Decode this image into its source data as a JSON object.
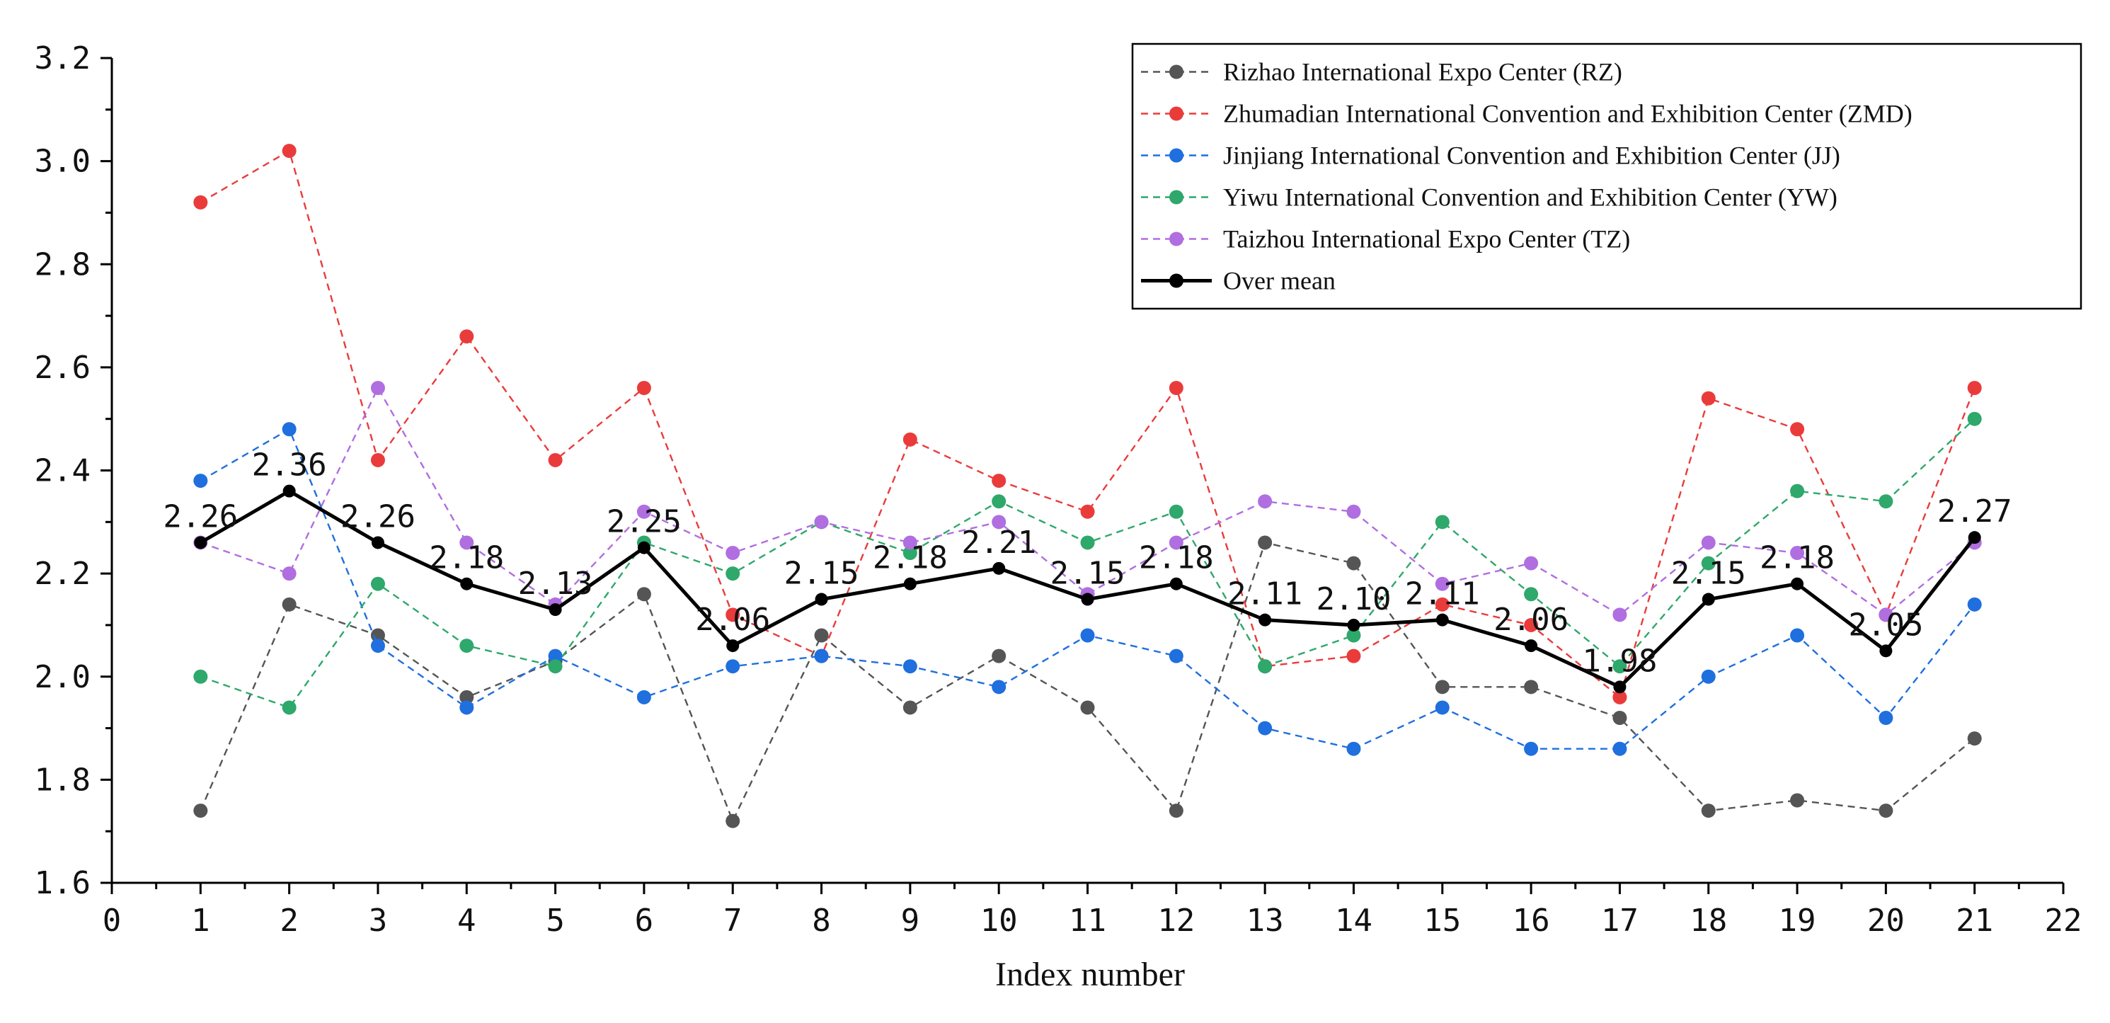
{
  "chart_data": {
    "type": "line",
    "title": "",
    "xlabel": "Index number",
    "ylabel": "",
    "xlim": [
      0,
      22
    ],
    "ylim": [
      1.6,
      3.2
    ],
    "x_ticks": [
      "0",
      "1",
      "2",
      "3",
      "4",
      "5",
      "6",
      "7",
      "8",
      "9",
      "10",
      "11",
      "12",
      "13",
      "14",
      "15",
      "16",
      "17",
      "18",
      "19",
      "20",
      "21",
      "22"
    ],
    "y_ticks": [
      "1.6",
      "1.8",
      "2.0",
      "2.2",
      "2.4",
      "2.6",
      "2.8",
      "3.0",
      "3.2"
    ],
    "y_tick_values": [
      1.6,
      1.8,
      2.0,
      2.2,
      2.4,
      2.6,
      2.8,
      3.0,
      3.2
    ],
    "grid": false,
    "legend_position": "top-right",
    "x": [
      1,
      2,
      3,
      4,
      5,
      6,
      7,
      8,
      9,
      10,
      11,
      12,
      13,
      14,
      15,
      16,
      17,
      18,
      19,
      20,
      21
    ],
    "series": [
      {
        "name": "Rizhao International Expo Center (RZ)",
        "color": "#555555",
        "style": "dashed",
        "values": [
          1.74,
          2.14,
          2.08,
          1.96,
          2.03,
          2.16,
          1.72,
          2.08,
          1.94,
          2.04,
          1.94,
          1.74,
          2.26,
          2.22,
          1.98,
          1.98,
          1.92,
          1.74,
          1.76,
          1.74,
          1.88
        ]
      },
      {
        "name": "Zhumadian International Convention and Exhibition Center (ZMD)",
        "color": "#ea3b3b",
        "style": "dashed",
        "values": [
          2.92,
          3.02,
          2.42,
          2.66,
          2.42,
          2.56,
          2.12,
          2.04,
          2.46,
          2.38,
          2.32,
          2.56,
          2.02,
          2.04,
          2.14,
          2.1,
          1.96,
          2.54,
          2.48,
          2.12,
          2.56
        ]
      },
      {
        "name": "Jinjiang International Convention and Exhibition Center (JJ)",
        "color": "#1f6fde",
        "style": "dashed",
        "values": [
          2.38,
          2.48,
          2.06,
          1.94,
          2.04,
          1.96,
          2.02,
          2.04,
          2.02,
          1.98,
          2.08,
          2.04,
          1.9,
          1.86,
          1.94,
          1.86,
          1.86,
          2.0,
          2.08,
          1.92,
          2.14
        ]
      },
      {
        "name": "Yiwu International Convention and Exhibition Center (YW)",
        "color": "#2ea86b",
        "style": "dashed",
        "values": [
          2.0,
          1.94,
          2.18,
          2.06,
          2.02,
          2.26,
          2.2,
          2.3,
          2.24,
          2.34,
          2.26,
          2.32,
          2.02,
          2.08,
          2.3,
          2.16,
          2.02,
          2.22,
          2.36,
          2.34,
          2.5
        ]
      },
      {
        "name": "Taizhou International Expo Center (TZ)",
        "color": "#b06ee0",
        "style": "dashed",
        "values": [
          2.26,
          2.2,
          2.56,
          2.26,
          2.14,
          2.32,
          2.24,
          2.3,
          2.26,
          2.3,
          2.16,
          2.26,
          2.34,
          2.32,
          2.18,
          2.22,
          2.12,
          2.26,
          2.24,
          2.12,
          2.26
        ]
      },
      {
        "name": "Over mean",
        "color": "#000000",
        "style": "solid",
        "values": [
          2.26,
          2.36,
          2.26,
          2.18,
          2.13,
          2.25,
          2.06,
          2.15,
          2.18,
          2.21,
          2.15,
          2.18,
          2.11,
          2.1,
          2.11,
          2.06,
          1.98,
          2.15,
          2.18,
          2.05,
          2.27
        ],
        "data_labels": [
          "2.26",
          "2.36",
          "2.26",
          "2.18",
          "2.13",
          "2.25",
          "2.06",
          "2.15",
          "2.18",
          "2.21",
          "2.15",
          "2.18",
          "2.11",
          "2.10",
          "2.11",
          "2.06",
          "1.98",
          "2.15",
          "2.18",
          "2.05",
          "2.27"
        ]
      }
    ]
  }
}
